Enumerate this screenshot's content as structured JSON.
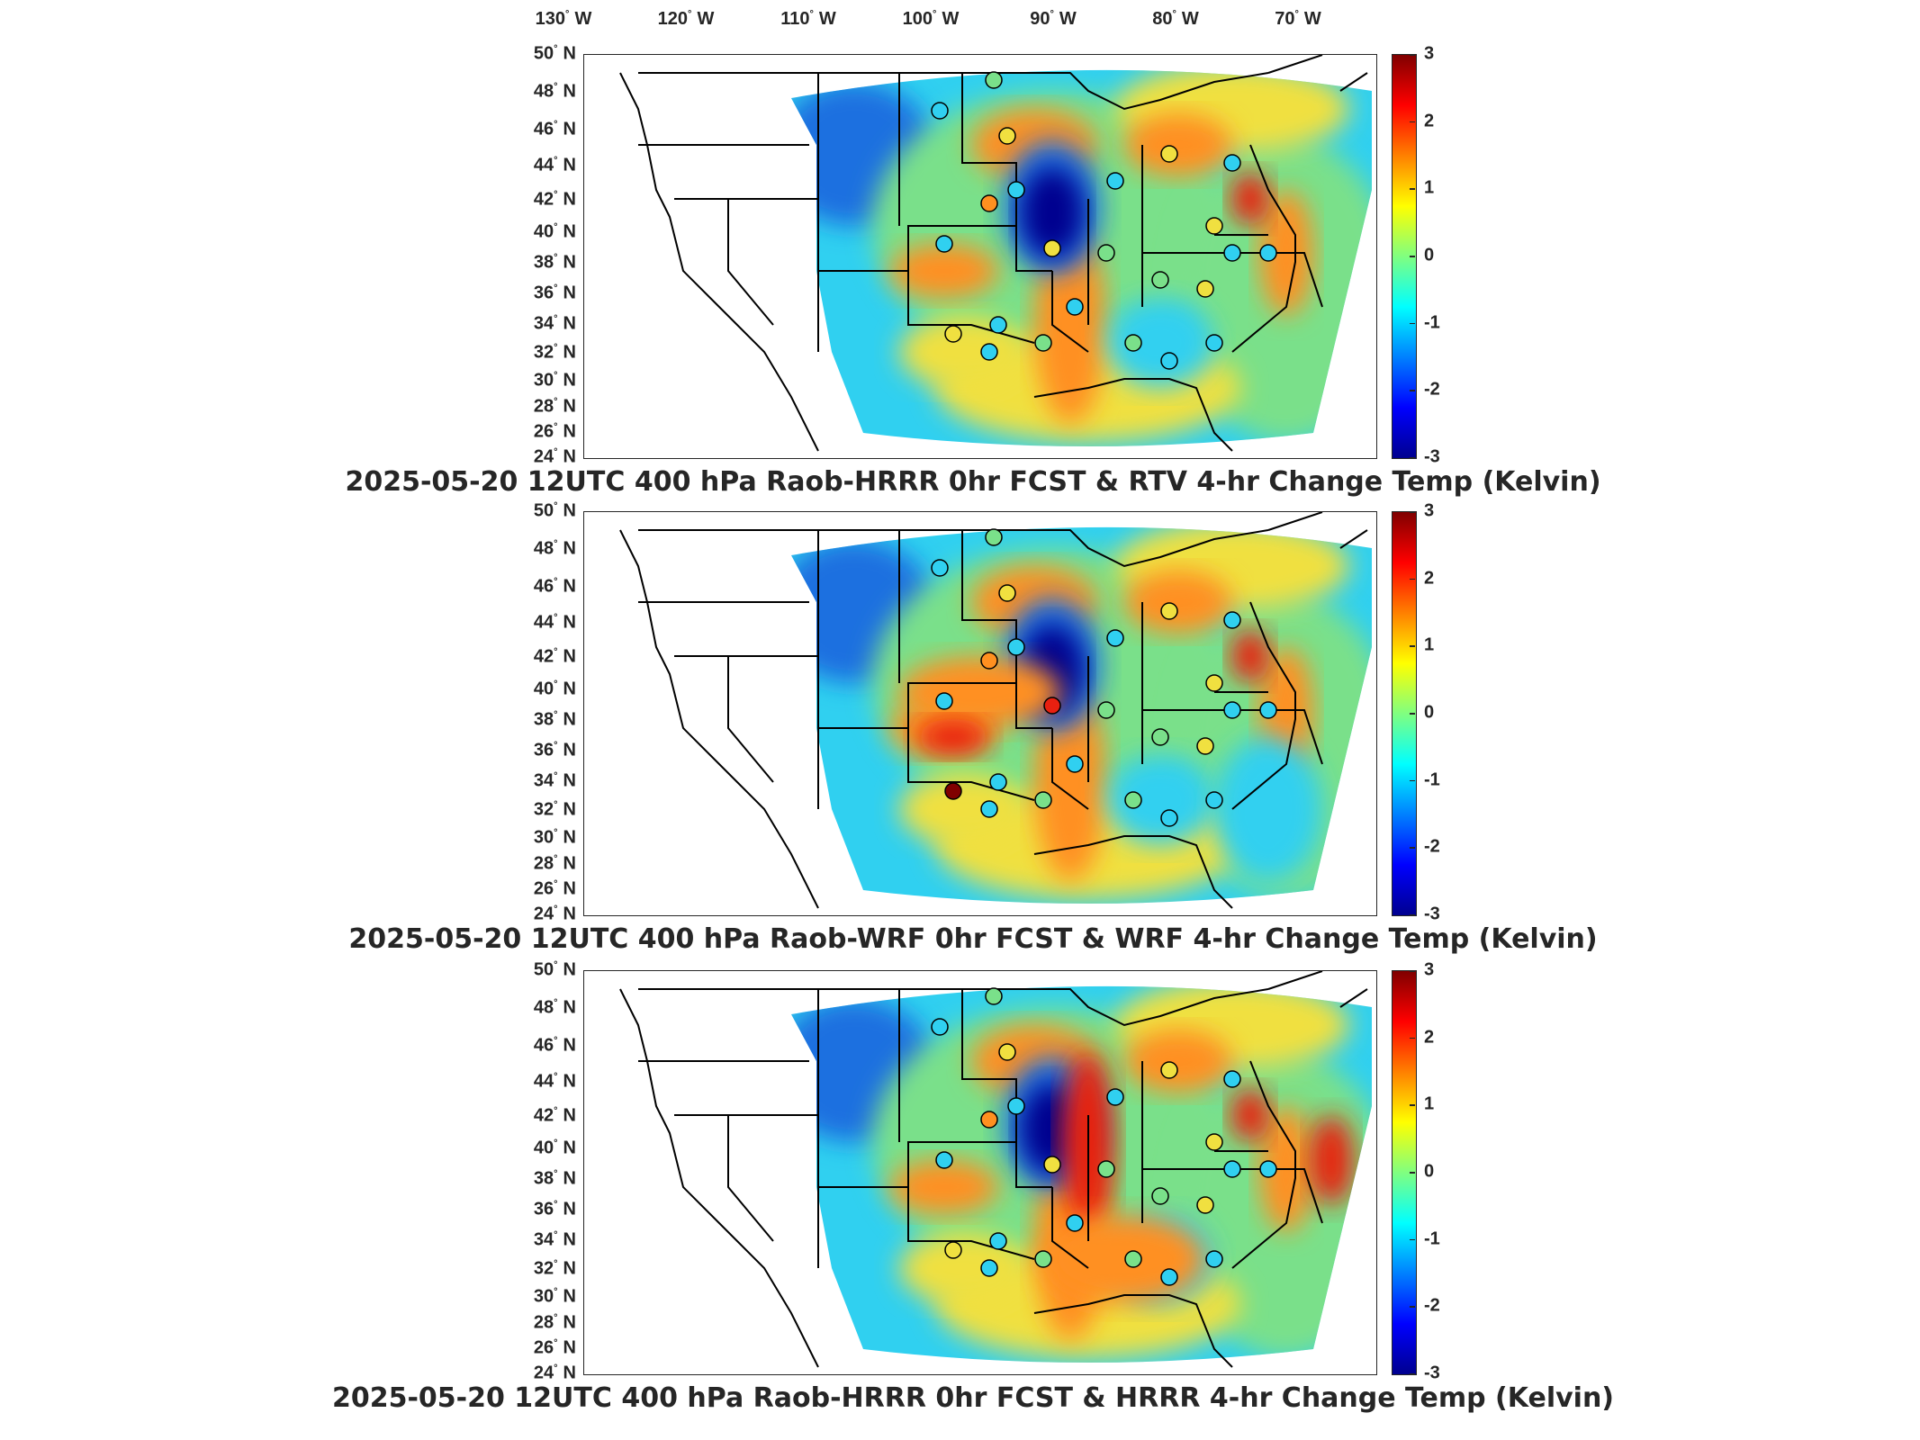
{
  "longitude_labels": [
    {
      "deg": "130",
      "hem": "W"
    },
    {
      "deg": "120",
      "hem": "W"
    },
    {
      "deg": "110",
      "hem": "W"
    },
    {
      "deg": "100",
      "hem": "W"
    },
    {
      "deg": "90",
      "hem": "W"
    },
    {
      "deg": "80",
      "hem": "W"
    },
    {
      "deg": "70",
      "hem": "W"
    }
  ],
  "latitude_labels": [
    {
      "deg": "50",
      "hem": "N"
    },
    {
      "deg": "48",
      "hem": "N"
    },
    {
      "deg": "46",
      "hem": "N"
    },
    {
      "deg": "44",
      "hem": "N"
    },
    {
      "deg": "42",
      "hem": "N"
    },
    {
      "deg": "40",
      "hem": "N"
    },
    {
      "deg": "38",
      "hem": "N"
    },
    {
      "deg": "36",
      "hem": "N"
    },
    {
      "deg": "34",
      "hem": "N"
    },
    {
      "deg": "32",
      "hem": "N"
    },
    {
      "deg": "30",
      "hem": "N"
    },
    {
      "deg": "28",
      "hem": "N"
    },
    {
      "deg": "26",
      "hem": "N"
    },
    {
      "deg": "24",
      "hem": "N"
    }
  ],
  "colorbar": {
    "ticks": [
      "3",
      "2",
      "1",
      "0",
      "-1",
      "-2",
      "-3"
    ],
    "range": [
      -3,
      3
    ],
    "colormap": "jet"
  },
  "panels": [
    {
      "title": "2025-05-20 12UTC 400 hPa Raob-HRRR 0hr FCST & RTV 4-hr Change Temp (Kelvin)"
    },
    {
      "title": "2025-05-20 12UTC 400 hPa Raob-WRF 0hr FCST & WRF 4-hr Change Temp (Kelvin)"
    },
    {
      "title": "2025-05-20 12UTC 400 hPa Raob-HRRR 0hr FCST & HRRR 4-hr Change Temp (Kelvin)"
    }
  ],
  "colors": {
    "deep_blue": "#00008f",
    "blue": "#1e6fe0",
    "cyan": "#30d0f0",
    "green": "#7ae08a",
    "yellow": "#f0e040",
    "orange": "#ff9020",
    "red": "#e82010",
    "dark_red": "#800000"
  }
}
